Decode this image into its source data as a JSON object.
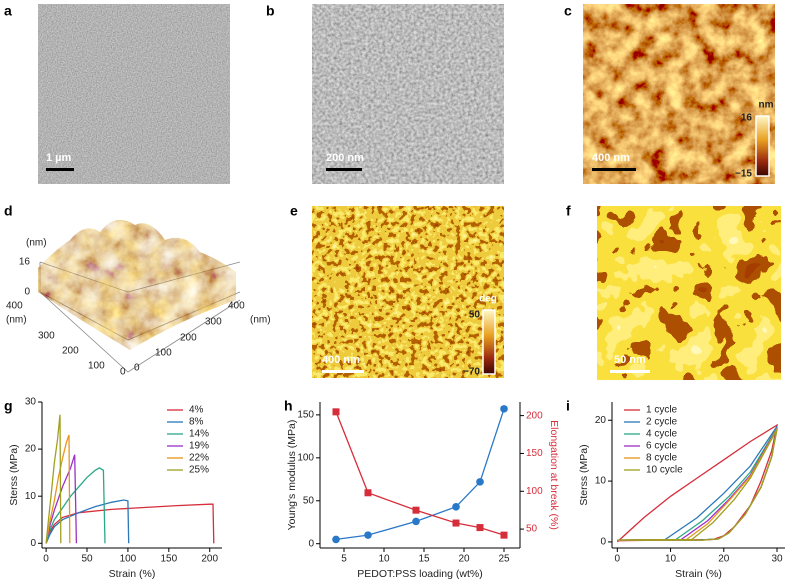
{
  "panel_labels": [
    "a",
    "b",
    "c",
    "d",
    "e",
    "f",
    "g",
    "h",
    "i"
  ],
  "images": {
    "a_scale": "1 µm",
    "b_scale": "200 nm",
    "c_scale": "400 nm",
    "c_colorbar": {
      "unit": "nm",
      "max": "16",
      "min": "−15"
    },
    "e_scale": "400 nm",
    "e_colorbar": {
      "unit": "deg",
      "max": "50",
      "min": "−70"
    },
    "f_scale": "50 nm"
  },
  "d_axes": {
    "z_unit": "(nm)",
    "z_ticks": [
      "16",
      "0"
    ],
    "y_unit": "(nm)",
    "y_ticks": [
      "400",
      "300",
      "200",
      "100",
      "0"
    ],
    "x_unit": "(nm)",
    "x_ticks": [
      "400",
      "300",
      "200",
      "100",
      "0"
    ]
  },
  "chart_data": [
    {
      "type": "line",
      "xlabel": "Strain (%)",
      "ylabel": "Sterss (MPa)",
      "xlim": [
        -5,
        215
      ],
      "xticks": [
        0,
        50,
        100,
        150,
        200
      ],
      "ylim": [
        -1,
        30
      ],
      "yticks": [
        0,
        10,
        20,
        30
      ],
      "legend": "upper right",
      "series": [
        {
          "name": "4%",
          "color": "#d62d3a",
          "x": [
            0,
            5,
            10,
            20,
            40,
            80,
            120,
            160,
            200,
            204,
            205
          ],
          "values": [
            0,
            2.5,
            4,
            5.5,
            6.5,
            7.2,
            7.6,
            8,
            8.3,
            8.3,
            0
          ]
        },
        {
          "name": "8%",
          "color": "#2a78b8",
          "x": [
            0,
            5,
            10,
            20,
            40,
            60,
            80,
            95,
            100,
            101
          ],
          "values": [
            0,
            2,
            3.5,
            5,
            6.5,
            7.8,
            8.7,
            9.2,
            9,
            0
          ]
        },
        {
          "name": "14%",
          "color": "#2aa889",
          "x": [
            0,
            5,
            10,
            20,
            30,
            40,
            50,
            60,
            65,
            70,
            72
          ],
          "values": [
            0,
            3,
            5,
            7.5,
            10,
            12,
            14,
            15.5,
            16,
            15.5,
            0
          ]
        },
        {
          "name": "19%",
          "color": "#9b30c8",
          "x": [
            0,
            5,
            10,
            20,
            30,
            35,
            37
          ],
          "values": [
            0,
            4,
            7,
            12,
            16,
            18.8,
            0
          ]
        },
        {
          "name": "22%",
          "color": "#e8951e",
          "x": [
            0,
            5,
            10,
            15,
            20,
            25,
            28,
            29
          ],
          "values": [
            0,
            5,
            9,
            14,
            18,
            21.5,
            23,
            0
          ]
        },
        {
          "name": "25%",
          "color": "#a0a020",
          "x": [
            0,
            3,
            6,
            10,
            14,
            17,
            18
          ],
          "values": [
            0,
            5,
            10,
            17,
            22,
            27.3,
            0
          ]
        }
      ]
    },
    {
      "type": "scatter",
      "xlabel": "PEDOT:PSS loading (wt%)",
      "ylabel": "Young's modulus (MPa)",
      "y2label": "Elongation at break (%)",
      "xlim": [
        2,
        27
      ],
      "xticks": [
        5,
        10,
        15,
        20,
        25
      ],
      "ylim": [
        -5,
        165
      ],
      "yticks": [
        0,
        50,
        100,
        150
      ],
      "y2lim": [
        25,
        218
      ],
      "y2ticks": [
        50,
        100,
        150,
        200
      ],
      "series": [
        {
          "color": "#2a78c8",
          "marker": "circle",
          "x": [
            4,
            8,
            14,
            19,
            22,
            25
          ],
          "values": [
            5,
            10,
            26,
            43,
            72,
            157
          ]
        },
        {
          "color": "#d62d3a",
          "marker": "square",
          "axis": "y2",
          "x": [
            4,
            8,
            14,
            19,
            22,
            25
          ],
          "values": [
            205,
            98,
            75,
            58,
            52,
            42
          ]
        }
      ]
    },
    {
      "type": "line",
      "xlabel": "Strain (%)",
      "ylabel": "Sterss (MPa)",
      "xlim": [
        -1,
        31.5
      ],
      "xticks": [
        0,
        10,
        20,
        30
      ],
      "ylim": [
        -1,
        23
      ],
      "yticks": [
        0,
        10,
        20
      ],
      "legend": "upper left",
      "series": [
        {
          "name": "1 cycle",
          "color": "#d62d3a",
          "x": [
            0,
            5,
            10,
            15,
            20,
            25,
            30,
            29,
            27,
            25,
            22,
            20,
            18,
            10,
            0
          ],
          "values": [
            0,
            4,
            7.5,
            10.5,
            13.5,
            16.5,
            19.2,
            15,
            10,
            6,
            2.5,
            1,
            0.4,
            0.3,
            0.2
          ]
        },
        {
          "name": "2 cycle",
          "color": "#2a78b8",
          "x": [
            0,
            9,
            15,
            20,
            25,
            30,
            29,
            27,
            24,
            21,
            19,
            15,
            9,
            0
          ],
          "values": [
            0.3,
            0.4,
            4,
            8,
            12.5,
            19,
            14,
            9,
            4.5,
            1.5,
            0.5,
            0.3,
            0.3,
            0.3
          ]
        },
        {
          "name": "4 cycle",
          "color": "#2aa889",
          "x": [
            0,
            11,
            16,
            21,
            25,
            30,
            29,
            27,
            24,
            21,
            19,
            15,
            11,
            0
          ],
          "values": [
            0.3,
            0.4,
            3.5,
            7.5,
            11.5,
            18.8,
            14,
            9,
            4.5,
            1.5,
            0.5,
            0.3,
            0.3,
            0.3
          ]
        },
        {
          "name": "6 cycle",
          "color": "#9b30c8",
          "x": [
            0,
            12,
            17,
            21,
            25,
            30,
            29,
            27,
            24,
            21,
            19,
            16,
            12,
            0
          ],
          "values": [
            0.3,
            0.4,
            3.5,
            7,
            11,
            18.7,
            14,
            9,
            4.5,
            1.5,
            0.5,
            0.3,
            0.3,
            0.3
          ]
        },
        {
          "name": "8 cycle",
          "color": "#e8951e",
          "x": [
            0,
            13,
            17,
            21,
            25,
            30,
            29,
            27,
            24,
            21,
            19,
            16,
            13,
            0
          ],
          "values": [
            0.3,
            0.4,
            3,
            6.8,
            10.8,
            18.6,
            14,
            9,
            4.5,
            1.5,
            0.5,
            0.3,
            0.3,
            0.3
          ]
        },
        {
          "name": "10 cycle",
          "color": "#a0a020",
          "x": [
            0,
            14,
            18,
            22,
            25,
            30,
            29,
            27,
            24,
            21,
            19,
            16,
            14,
            0
          ],
          "values": [
            0.3,
            0.4,
            3.2,
            7,
            10.5,
            18.5,
            14,
            9,
            4.5,
            1.5,
            0.5,
            0.3,
            0.3,
            0.3
          ]
        }
      ]
    }
  ]
}
